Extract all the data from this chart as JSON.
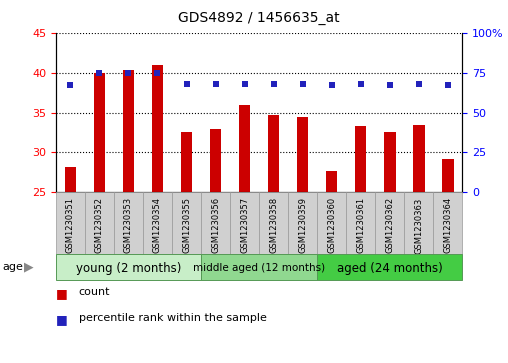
{
  "title": "GDS4892 / 1456635_at",
  "samples": [
    "GSM1230351",
    "GSM1230352",
    "GSM1230353",
    "GSM1230354",
    "GSM1230355",
    "GSM1230356",
    "GSM1230357",
    "GSM1230358",
    "GSM1230359",
    "GSM1230360",
    "GSM1230361",
    "GSM1230362",
    "GSM1230363",
    "GSM1230364"
  ],
  "counts": [
    28.2,
    40.0,
    40.3,
    41.0,
    32.5,
    33.0,
    36.0,
    34.7,
    34.5,
    27.7,
    33.3,
    32.5,
    33.5,
    29.2
  ],
  "percentiles": [
    67,
    75,
    75,
    75,
    68,
    68,
    68,
    68,
    68,
    67,
    68,
    67,
    68,
    67
  ],
  "ylim_left": [
    25,
    45
  ],
  "ylim_right": [
    0,
    100
  ],
  "yticks_left": [
    25,
    30,
    35,
    40,
    45
  ],
  "yticks_right": [
    0,
    25,
    50,
    75,
    100
  ],
  "bar_color": "#cc0000",
  "dot_color": "#2222bb",
  "group_labels": [
    "young (2 months)",
    "middle aged (12 months)",
    "aged (24 months)"
  ],
  "group_ranges": [
    [
      0,
      4
    ],
    [
      5,
      8
    ],
    [
      9,
      13
    ]
  ],
  "group_colors": [
    "#d4f0d4",
    "#b8e8b8",
    "#55cc55"
  ],
  "age_label": "age",
  "legend_bar_label": "count",
  "legend_dot_label": "percentile rank within the sample",
  "bar_bottom": 25,
  "bg_color": "#ffffff"
}
